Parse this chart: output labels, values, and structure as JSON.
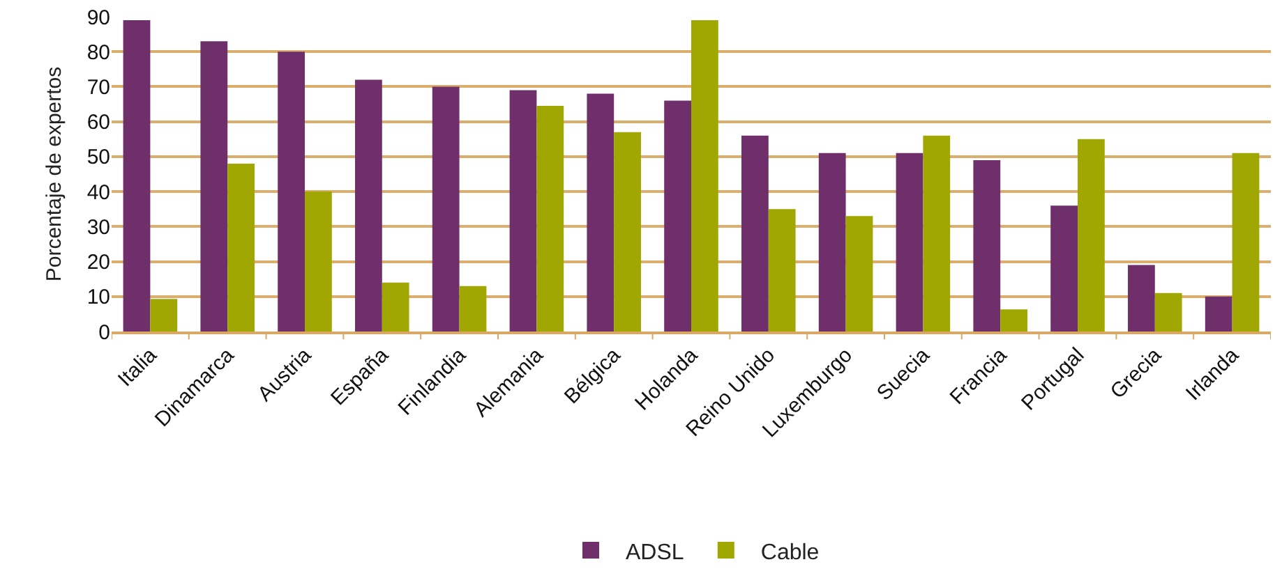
{
  "chart_data": {
    "type": "bar",
    "ylabel": "Porcentaje de expertos",
    "categories": [
      "Italia",
      "Dinamarca",
      "Austria",
      "España",
      "Finlandia",
      "Alemania",
      "Bélgica",
      "Holanda",
      "Reino Unido",
      "Luxemburgo",
      "Suecia",
      "Francia",
      "Portugal",
      "Grecia",
      "Irlanda"
    ],
    "series": [
      {
        "name": "ADSL",
        "color": "#6f2f6b",
        "values": [
          89,
          83,
          80,
          72,
          70,
          69,
          68,
          66,
          56,
          51,
          51,
          49,
          36,
          19,
          10
        ]
      },
      {
        "name": "Cable",
        "color": "#9fa700",
        "values": [
          9.3,
          48,
          40,
          14,
          13,
          64.5,
          57,
          89,
          35,
          33,
          56,
          6.3,
          55,
          11,
          51
        ]
      }
    ],
    "ylim": [
      0,
      90
    ],
    "yticks": [
      0,
      10,
      20,
      30,
      40,
      50,
      60,
      70,
      80,
      90
    ],
    "grid": "y",
    "legend": "bottom"
  }
}
